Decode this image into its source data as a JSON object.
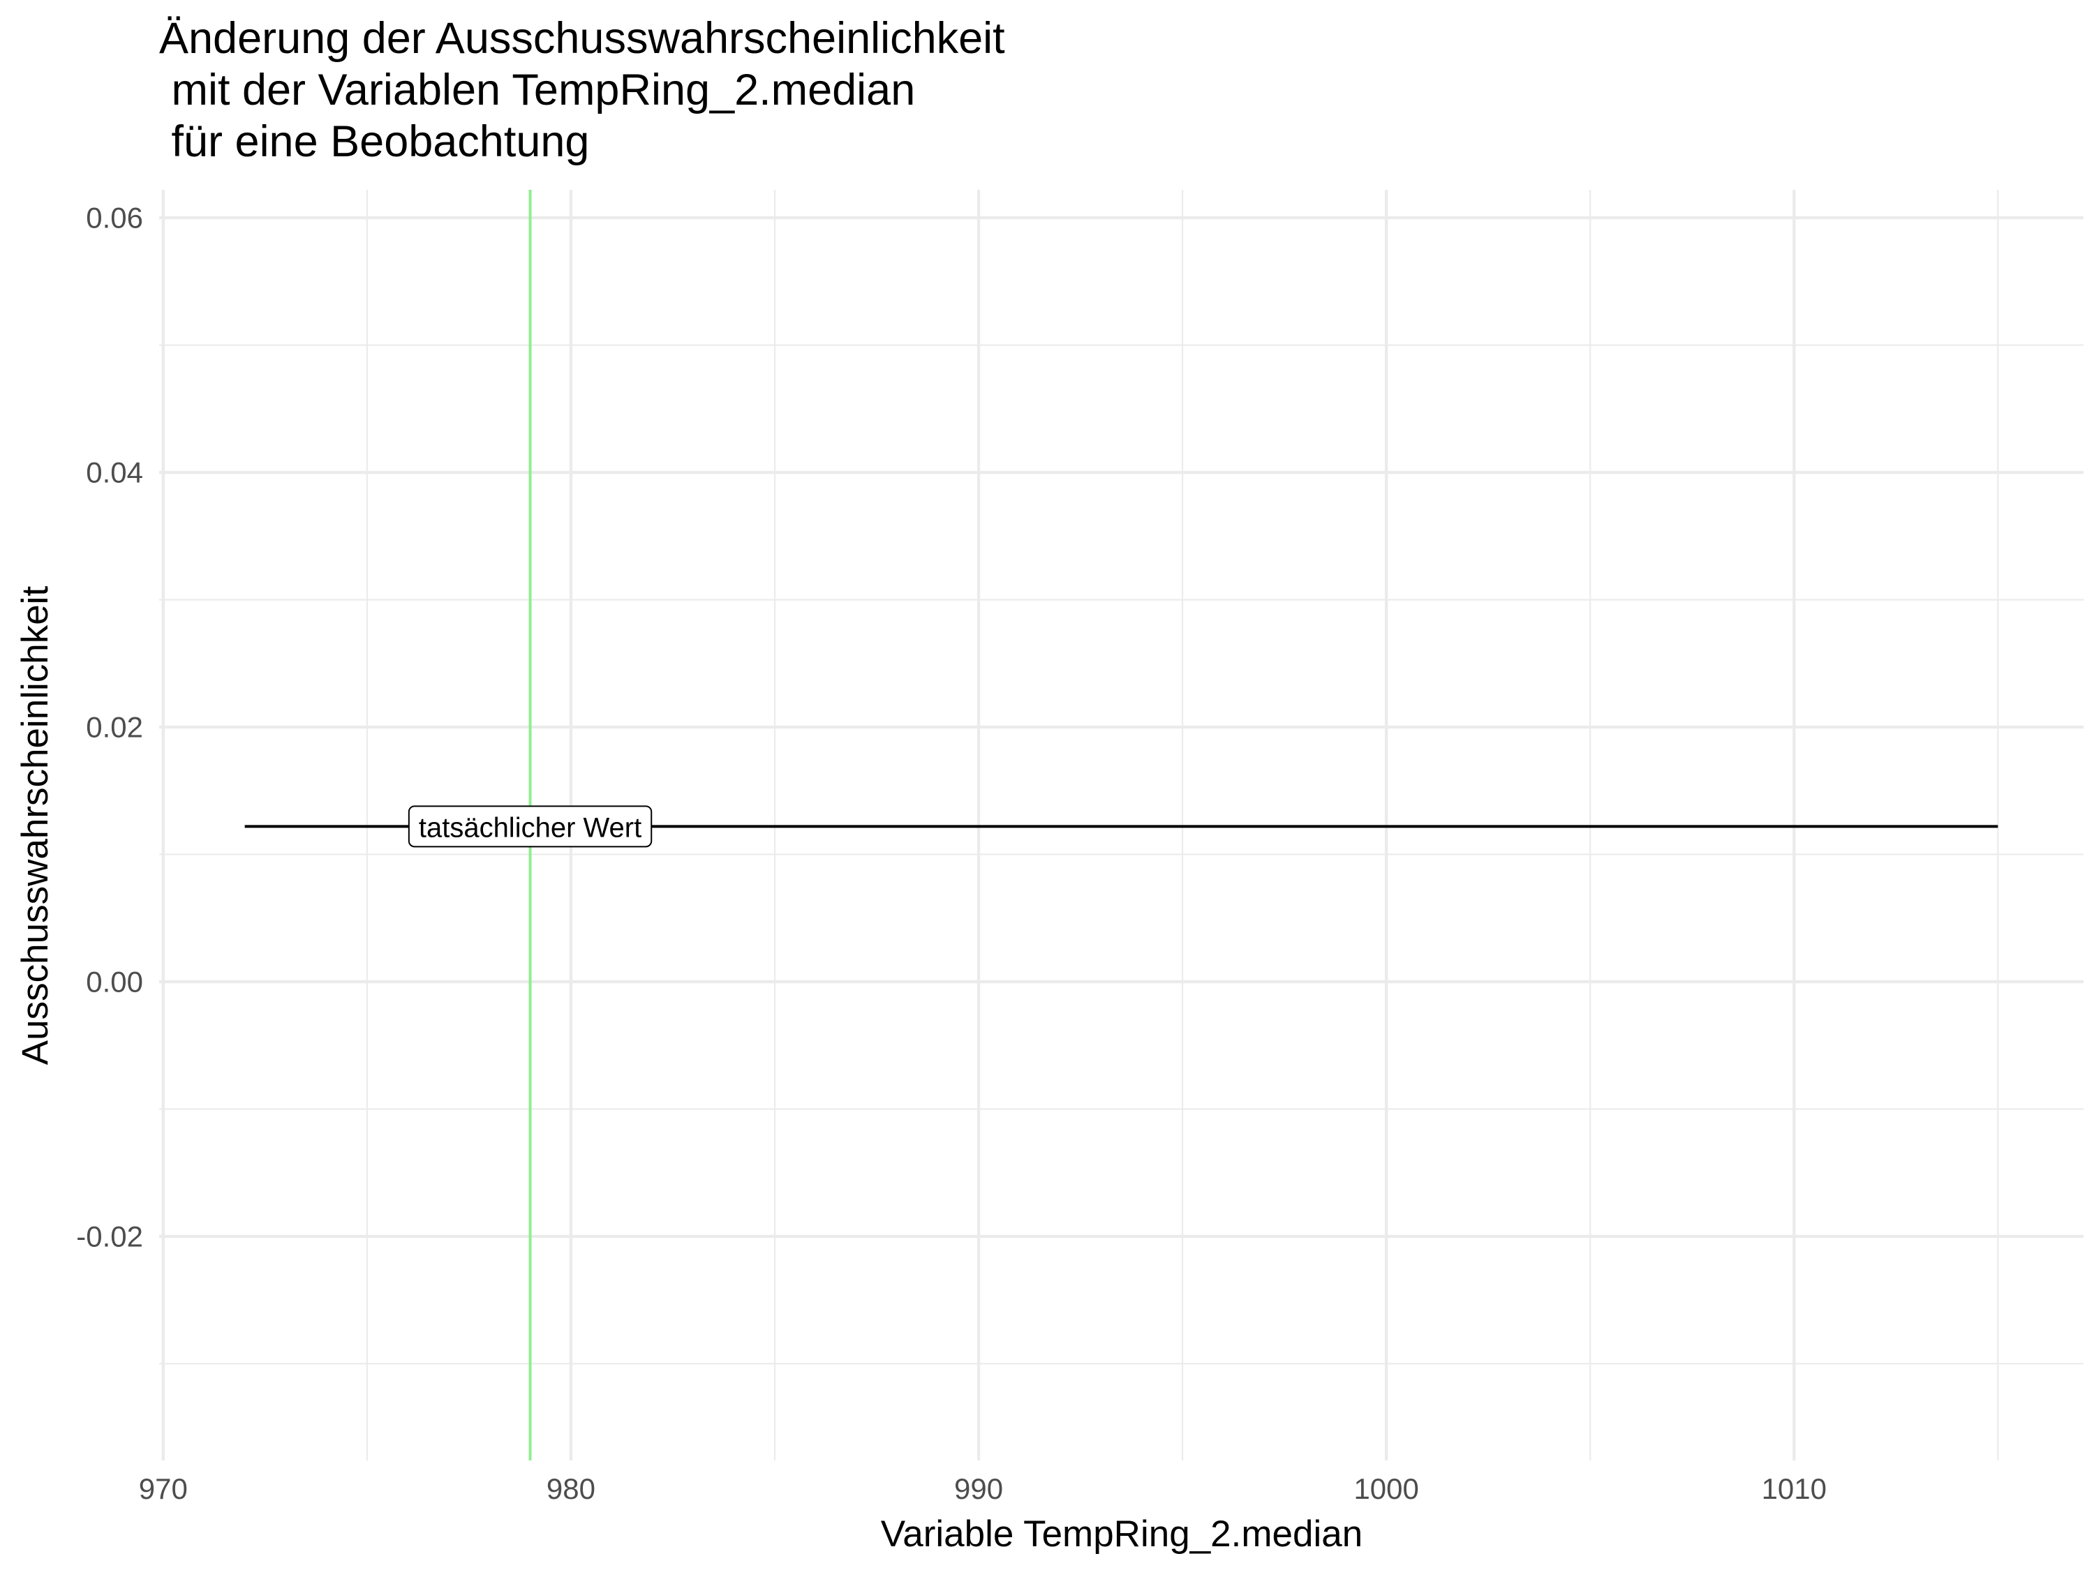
{
  "chart_data": {
    "type": "line",
    "title_lines": [
      "Änderung der Ausschusswahrscheinlichkeit",
      " mit der Variablen TempRing_2.median",
      " für eine Beobachtung"
    ],
    "xlabel": "Variable TempRing_2.median",
    "ylabel": "Ausschusswahrscheinlichkeit",
    "xlim": [
      969.9,
      1017.1
    ],
    "ylim": [
      -0.0376,
      0.0622
    ],
    "x_ticks": [
      970,
      980,
      990,
      1000,
      1010
    ],
    "x_tick_labels": [
      "970",
      "980",
      "990",
      "1000",
      "1010"
    ],
    "x_minor": [
      975,
      985,
      995,
      1005,
      1015
    ],
    "y_ticks": [
      -0.02,
      0.0,
      0.02,
      0.04,
      0.06
    ],
    "y_tick_labels": [
      "-0.02",
      "0.00",
      "0.02",
      "0.04",
      "0.06"
    ],
    "y_minor": [
      -0.03,
      -0.01,
      0.01,
      0.03,
      0.05
    ],
    "grid": true,
    "series": [
      {
        "x": [
          972,
          1015
        ],
        "y": [
          0.0122,
          0.0122
        ],
        "color": "#000000"
      }
    ],
    "vline": {
      "x": 979,
      "color": "#90ee90"
    },
    "annotation": {
      "text": "tatsächlicher Wert",
      "x": 979,
      "y": 0.0122
    }
  }
}
